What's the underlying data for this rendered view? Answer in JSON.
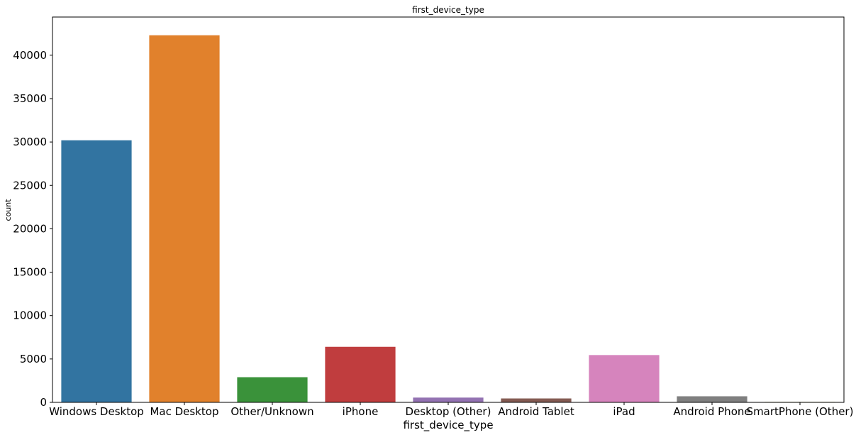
{
  "chart_data": {
    "type": "bar",
    "title": "first_device_type",
    "xlabel": "first_device_type",
    "ylabel": "count",
    "categories": [
      "Windows Desktop",
      "Mac Desktop",
      "Other/Unknown",
      "iPhone",
      "Desktop (Other)",
      "Android Tablet",
      "iPad",
      "Android Phone",
      "SmartPhone (Other)"
    ],
    "values": [
      30200,
      42300,
      2900,
      6400,
      550,
      450,
      5450,
      700,
      50
    ],
    "colors": [
      "#3274a1",
      "#e1812c",
      "#3a923a",
      "#c03d3e",
      "#9372b2",
      "#845b53",
      "#d684bd",
      "#7f7f7f",
      "#a9aa35"
    ],
    "yticks": [
      0,
      5000,
      10000,
      15000,
      20000,
      25000,
      30000,
      35000,
      40000
    ],
    "ylim": [
      0,
      44400
    ],
    "grid": false
  }
}
